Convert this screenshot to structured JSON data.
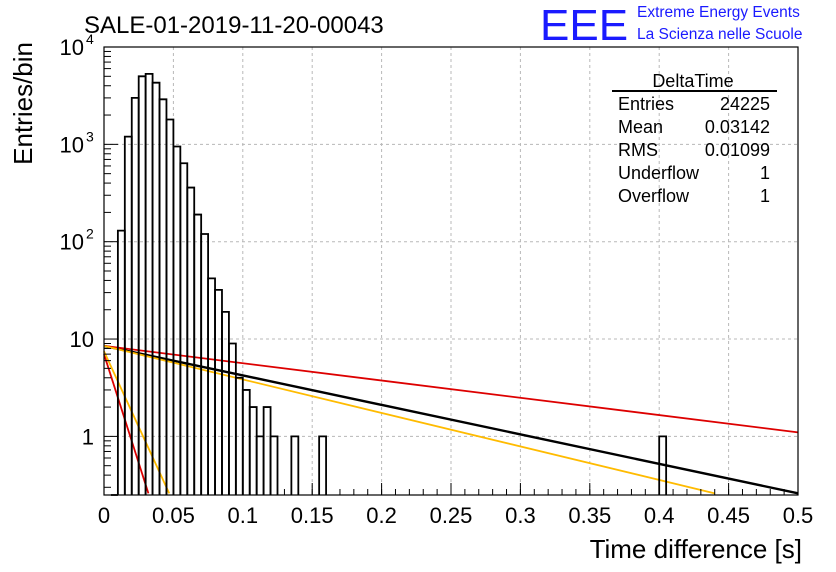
{
  "header": {
    "run_title": "SALE-01-2019-11-20-00043",
    "logo_text": "EEE",
    "logo_line1": "Extreme Energy Events",
    "logo_line2": "La Scienza nelle Scuole",
    "logo_color": "#1a1aff"
  },
  "stats_box": {
    "title": "DeltaTime",
    "rows": [
      {
        "label": "Entries",
        "value": "24225"
      },
      {
        "label": "Mean",
        "value": "0.03142"
      },
      {
        "label": "RMS",
        "value": "0.01099"
      },
      {
        "label": "Underflow",
        "value": "1"
      },
      {
        "label": "Overflow",
        "value": "1"
      }
    ]
  },
  "chart_data": {
    "type": "histogram",
    "xlabel": "Time difference [s]",
    "ylabel": "Entries/bin",
    "xlim": [
      0,
      0.5
    ],
    "ylim": [
      0.25,
      10000
    ],
    "y_scale": "log",
    "grid": true,
    "x_ticks": [
      "0",
      "0.05",
      "0.1",
      "0.15",
      "0.2",
      "0.25",
      "0.3",
      "0.35",
      "0.4",
      "0.45",
      "0.5"
    ],
    "y_ticks": [
      {
        "value": 1,
        "label": "1"
      },
      {
        "value": 10,
        "label": "10"
      },
      {
        "value": 100,
        "label": "10",
        "exp": "2"
      },
      {
        "value": 1000,
        "label": "10",
        "exp": "3"
      },
      {
        "value": 10000,
        "label": "10",
        "exp": "4"
      }
    ],
    "bin_width": 0.005,
    "bins": [
      {
        "x": 0.0,
        "y": 0
      },
      {
        "x": 0.005,
        "y": 0.2
      },
      {
        "x": 0.01,
        "y": 130
      },
      {
        "x": 0.015,
        "y": 1200
      },
      {
        "x": 0.02,
        "y": 3000
      },
      {
        "x": 0.025,
        "y": 5000
      },
      {
        "x": 0.03,
        "y": 5300
      },
      {
        "x": 0.035,
        "y": 4300
      },
      {
        "x": 0.04,
        "y": 2900
      },
      {
        "x": 0.045,
        "y": 1800
      },
      {
        "x": 0.05,
        "y": 950
      },
      {
        "x": 0.055,
        "y": 640
      },
      {
        "x": 0.06,
        "y": 360
      },
      {
        "x": 0.065,
        "y": 190
      },
      {
        "x": 0.07,
        "y": 120
      },
      {
        "x": 0.075,
        "y": 42
      },
      {
        "x": 0.08,
        "y": 32
      },
      {
        "x": 0.085,
        "y": 19
      },
      {
        "x": 0.09,
        "y": 9
      },
      {
        "x": 0.095,
        "y": 4
      },
      {
        "x": 0.1,
        "y": 3
      },
      {
        "x": 0.105,
        "y": 2
      },
      {
        "x": 0.11,
        "y": 1
      },
      {
        "x": 0.115,
        "y": 2
      },
      {
        "x": 0.12,
        "y": 1
      },
      {
        "x": 0.125,
        "y": 0
      },
      {
        "x": 0.13,
        "y": 0
      },
      {
        "x": 0.135,
        "y": 1
      },
      {
        "x": 0.14,
        "y": 0
      },
      {
        "x": 0.145,
        "y": 0
      },
      {
        "x": 0.15,
        "y": 0
      },
      {
        "x": 0.155,
        "y": 1
      },
      {
        "x": 0.16,
        "y": 0
      },
      {
        "x": 0.4,
        "y": 1
      }
    ],
    "fit_lines": [
      {
        "color": "#000000",
        "x": [
          0,
          0.5
        ],
        "y": [
          8.5,
          0.26
        ]
      },
      {
        "color": "#dd0000",
        "x": [
          0,
          0.5
        ],
        "y": [
          8.5,
          1.1
        ]
      },
      {
        "color": "#ffbb00",
        "x": [
          0,
          0.44
        ],
        "y": [
          8.5,
          0.26
        ]
      },
      {
        "color": "#dd0000",
        "x": [
          0,
          0.032
        ],
        "y": [
          7.0,
          0.26
        ]
      },
      {
        "color": "#ffbb00",
        "x": [
          0,
          0.047
        ],
        "y": [
          7.5,
          0.26
        ]
      }
    ]
  }
}
